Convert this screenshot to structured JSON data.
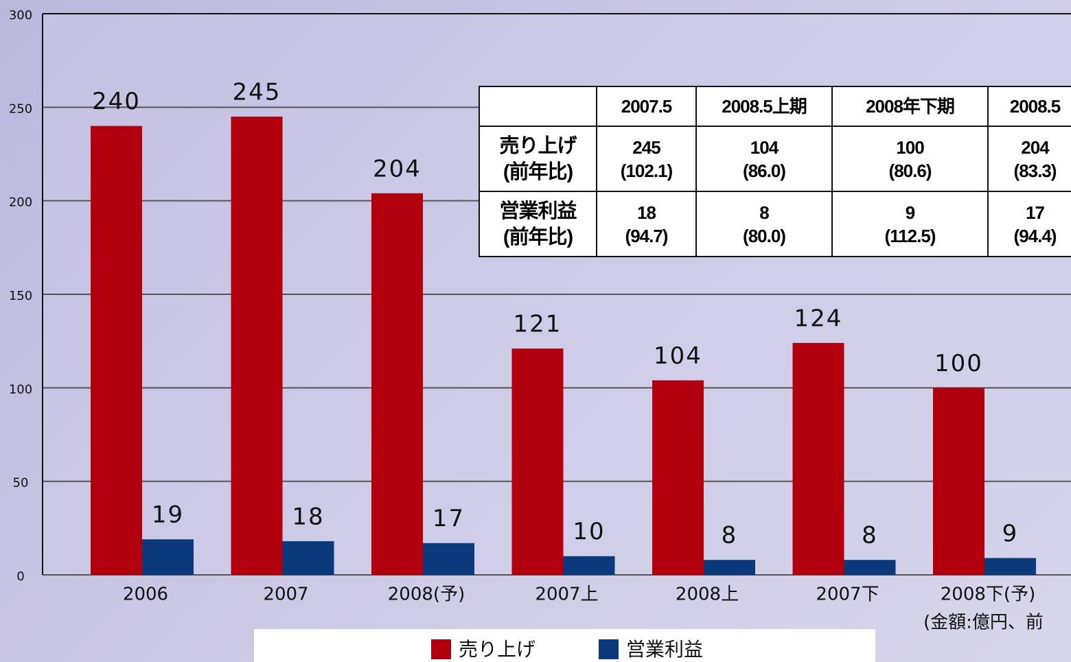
{
  "chart_data": {
    "type": "bar",
    "categories": [
      "2006",
      "2007",
      "2008(予)",
      "2007上",
      "2008上",
      "2007下",
      "2008下(予)"
    ],
    "series": [
      {
        "name": "売り上げ",
        "color": "#b3000f",
        "values": [
          240,
          245,
          204,
          121,
          104,
          124,
          100
        ]
      },
      {
        "name": "営業利益",
        "color": "#0b3a7c",
        "values": [
          19,
          18,
          17,
          10,
          8,
          8,
          9
        ]
      }
    ],
    "ylim": [
      0,
      300
    ],
    "yticks": [
      0,
      50,
      100,
      150,
      200,
      250,
      300
    ],
    "grid": true,
    "note": "(金額:億円、前",
    "table": {
      "columns": [
        "2007.5",
        "2008.5上期",
        "2008年下期",
        "2008.5"
      ],
      "rows": [
        {
          "label": [
            "売り上げ",
            "(前年比)"
          ],
          "cells": [
            [
              "245",
              "(102.1)"
            ],
            [
              "104",
              "(86.0)"
            ],
            [
              "100",
              "(80.6)"
            ],
            [
              "204",
              "(83.3)"
            ]
          ]
        },
        {
          "label": [
            "営業利益",
            "(前年比)"
          ],
          "cells": [
            [
              "18",
              "(94.7)"
            ],
            [
              "8",
              "(80.0)"
            ],
            [
              "9",
              "(112.5)"
            ],
            [
              "17",
              "(94.4)"
            ]
          ]
        }
      ]
    }
  }
}
